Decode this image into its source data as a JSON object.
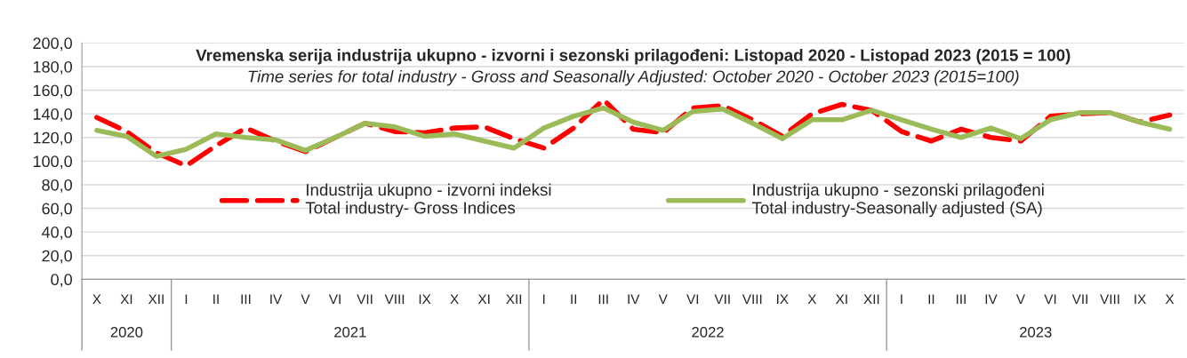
{
  "chart_data": {
    "type": "line",
    "title": "Vremenska serija industrija ukupno - izvorni i sezonski prilagođeni: Listopad 2020 - Listopad 2023 (2015 = 100)",
    "subtitle": "Time series for total industry - Gross and Seasonally Adjusted: October 2020 - October 2023 (2015=100)",
    "categories": [
      "X",
      "XI",
      "XII",
      "I",
      "II",
      "III",
      "IV",
      "V",
      "VI",
      "VII",
      "VIII",
      "IX",
      "X",
      "XI",
      "XII",
      "I",
      "II",
      "III",
      "IV",
      "V",
      "VI",
      "VII",
      "VIII",
      "IX",
      "X",
      "XI",
      "XII",
      "I",
      "II",
      "III",
      "IV",
      "V",
      "VI",
      "VII",
      "VIII",
      "IX",
      "X"
    ],
    "series": [
      {
        "name": "Industrija ukupno - izvorni indeksi\nTotal industry- Gross Indices",
        "color": "#ff0000",
        "line_style": "dashed",
        "values": [
          137,
          125,
          107,
          96,
          113,
          128,
          117,
          108,
          120,
          132,
          125,
          124,
          128,
          129,
          119,
          111,
          128,
          152,
          127,
          124,
          145,
          147,
          135,
          121,
          140,
          148,
          143,
          125,
          117,
          127,
          120,
          117,
          138,
          140,
          141,
          133,
          139
        ]
      },
      {
        "name": "Industrija ukupno - sezonski prilagođeni\nTotal industry-Seasonally adjusted (SA)",
        "color": "#9bbb59",
        "line_style": "solid",
        "values": [
          126,
          121,
          104,
          110,
          123,
          120,
          118,
          109,
          120,
          132,
          129,
          121,
          123,
          117,
          111,
          128,
          138,
          145,
          133,
          126,
          142,
          144,
          132,
          119,
          135,
          135,
          143,
          135,
          127,
          120,
          128,
          119,
          135,
          141,
          141,
          133,
          127
        ]
      }
    ],
    "annotations": [
      "2020",
      "2021",
      "2022",
      "2023"
    ],
    "ylim": [
      0,
      200
    ],
    "yticks": [
      {
        "value": 0,
        "label": "0,0"
      },
      {
        "value": 20,
        "label": "20,0"
      },
      {
        "value": 40,
        "label": "40,0"
      },
      {
        "value": 60,
        "label": "60,0"
      },
      {
        "value": 80,
        "label": "80,0"
      },
      {
        "value": 100,
        "label": "100,0"
      },
      {
        "value": 120,
        "label": "120,0"
      },
      {
        "value": 140,
        "label": "140,0"
      },
      {
        "value": 160,
        "label": "160,0"
      },
      {
        "value": 180,
        "label": "180,0"
      },
      {
        "value": 200,
        "label": "200,0"
      }
    ],
    "grid": "y",
    "legend": "bottom"
  }
}
